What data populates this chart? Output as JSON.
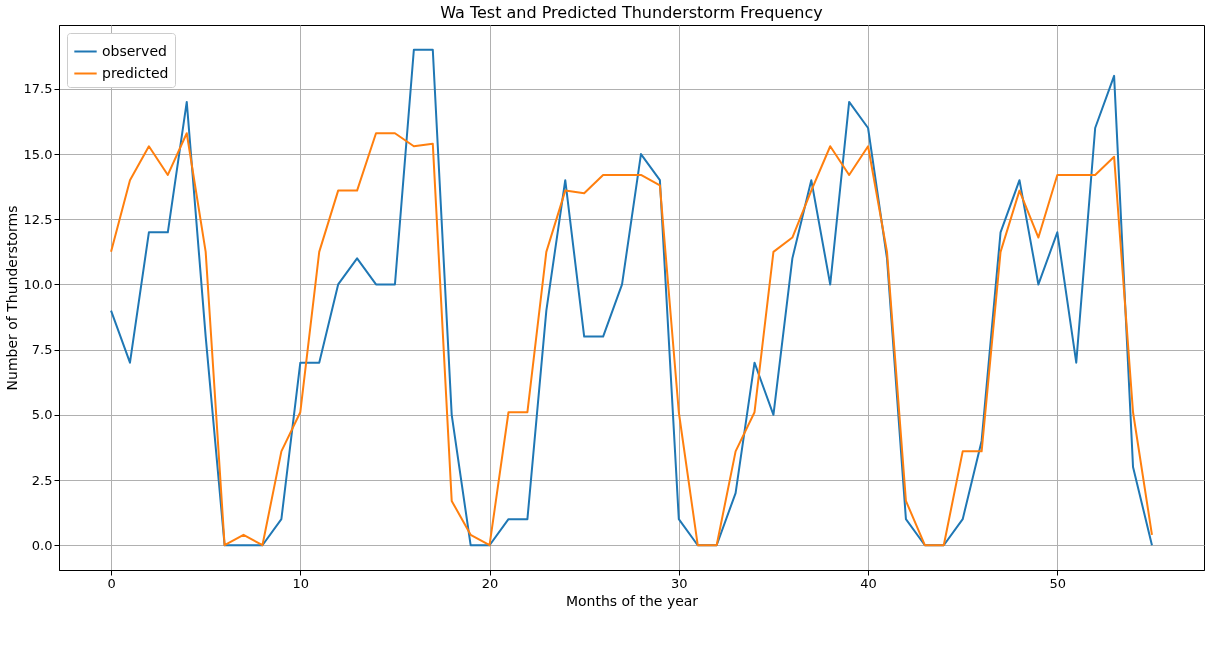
{
  "chart_data": {
    "type": "line",
    "title": "Wa Test and Predicted Thunderstorm Frequency",
    "xlabel": "Months of the year",
    "ylabel": "Number of Thunderstorms",
    "x": [
      0,
      1,
      2,
      3,
      4,
      5,
      6,
      7,
      8,
      9,
      10,
      11,
      12,
      13,
      14,
      15,
      16,
      17,
      18,
      19,
      20,
      21,
      22,
      23,
      24,
      25,
      26,
      27,
      28,
      29,
      30,
      31,
      32,
      33,
      34,
      35,
      36,
      37,
      38,
      39,
      40,
      41,
      42,
      43,
      44,
      45,
      46,
      47,
      48,
      49,
      50,
      51,
      52,
      53,
      54,
      55
    ],
    "series": [
      {
        "name": "observed",
        "color": "#1f77b4",
        "values": [
          9,
          7,
          12,
          12,
          17,
          8,
          0,
          0,
          0,
          1,
          7,
          7,
          10,
          11,
          10,
          10,
          19,
          19,
          5,
          0,
          0,
          1,
          1,
          9,
          14,
          8,
          8,
          10,
          15,
          14,
          1,
          0,
          0,
          2,
          7,
          5,
          11,
          14,
          10,
          17,
          16,
          11,
          1,
          0,
          0,
          1,
          4,
          12,
          14,
          10,
          12,
          7,
          16,
          18,
          3,
          0
        ]
      },
      {
        "name": "predicted",
        "color": "#ff7f0e",
        "values": [
          11.25,
          14,
          15.3,
          14.2,
          15.8,
          11.25,
          0,
          0.4,
          0,
          3.6,
          5.1,
          11.25,
          13.6,
          13.6,
          15.8,
          15.8,
          15.3,
          15.4,
          1.7,
          0.4,
          0,
          5.1,
          5.1,
          11.25,
          13.6,
          13.5,
          14.2,
          14.2,
          14.2,
          13.8,
          5.1,
          0,
          0,
          3.6,
          5.1,
          11.25,
          11.8,
          13.6,
          15.3,
          14.2,
          15.3,
          11.25,
          1.7,
          0,
          0,
          3.6,
          3.6,
          11.25,
          13.6,
          11.8,
          14.2,
          14.2,
          14.2,
          14.9,
          5.1,
          0.4
        ]
      }
    ],
    "xlim": [
      -2.75,
      57.75
    ],
    "xticks": [
      0,
      10,
      20,
      30,
      40,
      50
    ],
    "ylim": [
      -0.95,
      19.95
    ],
    "yticks": [
      {
        "value": 0,
        "label": "0.0"
      },
      2.5,
      {
        "value": 5,
        "label": "5.0"
      },
      7.5,
      {
        "value": 10,
        "label": "10.0"
      },
      12.5,
      {
        "value": 15,
        "label": "15.0"
      },
      17.5
    ],
    "grid": true,
    "legend": "top left",
    "marker": "none",
    "line_style": "solid"
  }
}
